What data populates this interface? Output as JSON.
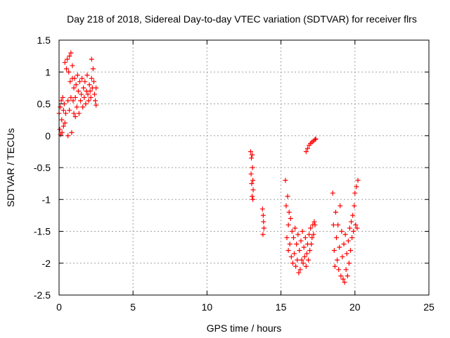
{
  "chart_data": {
    "type": "scatter",
    "title": "Day 218 of 2018, Sidereal Day-to-day VTEC variation (SDTVAR) for receiver flrs",
    "xlabel": "GPS time / hours",
    "ylabel": "SDTVAR / TECUs",
    "xlim": [
      0,
      25
    ],
    "ylim": [
      -2.5,
      1.5
    ],
    "xticks": [
      0,
      5,
      10,
      15,
      20,
      25
    ],
    "xtick_labels": [
      "0",
      "5",
      "10",
      "15",
      "20",
      "25"
    ],
    "yticks": [
      1.5,
      1,
      0.5,
      0,
      -0.5,
      -1,
      -1.5,
      -2,
      -2.5
    ],
    "ytick_labels": [
      "1.5",
      "1",
      "0.5",
      "0",
      "-0.5",
      "-1",
      "-1.5",
      "-2",
      "-2.5"
    ],
    "grid": true,
    "marker": "plus",
    "series": [
      {
        "name": "flrs",
        "color": "#ff0000",
        "points": [
          [
            0.0,
            0.35
          ],
          [
            0.05,
            0.1
          ],
          [
            0.08,
            0.45
          ],
          [
            0.1,
            0.02
          ],
          [
            0.15,
            0.55
          ],
          [
            0.18,
            0.25
          ],
          [
            0.2,
            0.05
          ],
          [
            0.25,
            0.6
          ],
          [
            0.3,
            0.4
          ],
          [
            0.3,
            0.15
          ],
          [
            0.35,
            0.5
          ],
          [
            0.4,
            0.2
          ],
          [
            0.4,
            1.15
          ],
          [
            0.45,
            0.35
          ],
          [
            0.5,
            1.05
          ],
          [
            0.55,
            1.2
          ],
          [
            0.6,
            0.55
          ],
          [
            0.6,
            0.0
          ],
          [
            0.65,
            1.0
          ],
          [
            0.7,
            1.25
          ],
          [
            0.7,
            0.4
          ],
          [
            0.75,
            0.85
          ],
          [
            0.8,
            1.3
          ],
          [
            0.8,
            0.6
          ],
          [
            0.85,
            0.05
          ],
          [
            0.9,
            0.9
          ],
          [
            0.9,
            1.1
          ],
          [
            0.95,
            0.55
          ],
          [
            1.0,
            0.75
          ],
          [
            1.0,
            0.35
          ],
          [
            1.05,
            0.9
          ],
          [
            1.1,
            0.6
          ],
          [
            1.1,
            0.3
          ],
          [
            1.15,
            0.8
          ],
          [
            1.2,
            0.45
          ],
          [
            1.25,
            0.95
          ],
          [
            1.3,
            0.7
          ],
          [
            1.35,
            0.35
          ],
          [
            1.4,
            0.85
          ],
          [
            1.45,
            0.55
          ],
          [
            1.5,
            0.65
          ],
          [
            1.55,
            0.9
          ],
          [
            1.6,
            0.45
          ],
          [
            1.65,
            0.75
          ],
          [
            1.7,
            0.6
          ],
          [
            1.75,
            0.85
          ],
          [
            1.8,
            0.5
          ],
          [
            1.85,
            0.7
          ],
          [
            1.9,
            0.95
          ],
          [
            1.95,
            0.65
          ],
          [
            2.0,
            0.55
          ],
          [
            2.05,
            0.8
          ],
          [
            2.1,
            0.7
          ],
          [
            2.15,
            0.6
          ],
          [
            2.2,
            1.2
          ],
          [
            2.2,
            0.9
          ],
          [
            2.25,
            0.75
          ],
          [
            2.3,
            1.05
          ],
          [
            2.35,
            0.85
          ],
          [
            2.4,
            0.65
          ],
          [
            2.45,
            0.55
          ],
          [
            2.5,
            0.48
          ],
          [
            2.5,
            0.75
          ],
          [
            12.95,
            -0.25
          ],
          [
            12.98,
            -0.6
          ],
          [
            13.0,
            -0.35
          ],
          [
            13.02,
            -0.75
          ],
          [
            13.05,
            -0.3
          ],
          [
            13.05,
            -0.95
          ],
          [
            13.08,
            -0.5
          ],
          [
            13.1,
            -0.7
          ],
          [
            13.1,
            -1.0
          ],
          [
            13.12,
            -0.85
          ],
          [
            13.75,
            -1.15
          ],
          [
            13.78,
            -1.55
          ],
          [
            13.8,
            -1.25
          ],
          [
            13.82,
            -1.35
          ],
          [
            13.85,
            -1.45
          ],
          [
            15.3,
            -0.7
          ],
          [
            15.35,
            -1.1
          ],
          [
            15.4,
            -1.6
          ],
          [
            15.45,
            -0.95
          ],
          [
            15.5,
            -1.4
          ],
          [
            15.5,
            -1.8
          ],
          [
            15.55,
            -1.2
          ],
          [
            15.6,
            -1.7
          ],
          [
            15.65,
            -1.3
          ],
          [
            15.7,
            -1.9
          ],
          [
            15.75,
            -1.5
          ],
          [
            15.8,
            -2.0
          ],
          [
            15.85,
            -1.6
          ],
          [
            15.9,
            -1.85
          ],
          [
            15.95,
            -1.45
          ],
          [
            16.0,
            -2.05
          ],
          [
            16.05,
            -1.7
          ],
          [
            16.1,
            -1.95
          ],
          [
            16.15,
            -1.55
          ],
          [
            16.2,
            -2.15
          ],
          [
            16.25,
            -1.8
          ],
          [
            16.3,
            -2.1
          ],
          [
            16.35,
            -1.65
          ],
          [
            16.4,
            -1.95
          ],
          [
            16.45,
            -1.5
          ],
          [
            16.5,
            -2.0
          ],
          [
            16.55,
            -1.75
          ],
          [
            16.6,
            -1.9
          ],
          [
            16.65,
            -1.6
          ],
          [
            16.7,
            -2.05
          ],
          [
            16.75,
            -1.85
          ],
          [
            16.8,
            -1.7
          ],
          [
            16.85,
            -1.95
          ],
          [
            16.9,
            -1.55
          ],
          [
            16.95,
            -1.8
          ],
          [
            17.0,
            -1.45
          ],
          [
            17.05,
            -1.7
          ],
          [
            17.1,
            -1.6
          ],
          [
            17.15,
            -1.4
          ],
          [
            17.2,
            -1.55
          ],
          [
            17.25,
            -1.35
          ],
          [
            17.3,
            -1.4
          ],
          [
            16.7,
            -0.25
          ],
          [
            16.8,
            -0.2
          ],
          [
            16.9,
            -0.15
          ],
          [
            17.0,
            -0.12
          ],
          [
            17.1,
            -0.1
          ],
          [
            17.2,
            -0.08
          ],
          [
            17.3,
            -0.06
          ],
          [
            17.35,
            -0.05
          ],
          [
            18.5,
            -0.9
          ],
          [
            18.55,
            -1.4
          ],
          [
            18.6,
            -1.8
          ],
          [
            18.65,
            -2.05
          ],
          [
            18.7,
            -1.2
          ],
          [
            18.75,
            -1.6
          ],
          [
            18.8,
            -1.95
          ],
          [
            18.85,
            -1.4
          ],
          [
            18.9,
            -2.1
          ],
          [
            18.95,
            -1.75
          ],
          [
            19.0,
            -1.1
          ],
          [
            19.05,
            -2.2
          ],
          [
            19.1,
            -1.5
          ],
          [
            19.15,
            -1.9
          ],
          [
            19.2,
            -2.25
          ],
          [
            19.25,
            -1.7
          ],
          [
            19.3,
            -2.3
          ],
          [
            19.35,
            -1.55
          ],
          [
            19.4,
            -2.1
          ],
          [
            19.45,
            -1.85
          ],
          [
            19.5,
            -2.2
          ],
          [
            19.55,
            -1.65
          ],
          [
            19.6,
            -2.0
          ],
          [
            19.65,
            -1.45
          ],
          [
            19.7,
            -1.8
          ],
          [
            19.75,
            -1.35
          ],
          [
            19.8,
            -1.6
          ],
          [
            19.85,
            -1.25
          ],
          [
            19.9,
            -1.5
          ],
          [
            19.95,
            -1.1
          ],
          [
            20.0,
            -0.9
          ],
          [
            20.05,
            -1.4
          ],
          [
            20.1,
            -0.8
          ],
          [
            20.15,
            -1.45
          ],
          [
            20.2,
            -0.7
          ]
        ]
      }
    ]
  }
}
